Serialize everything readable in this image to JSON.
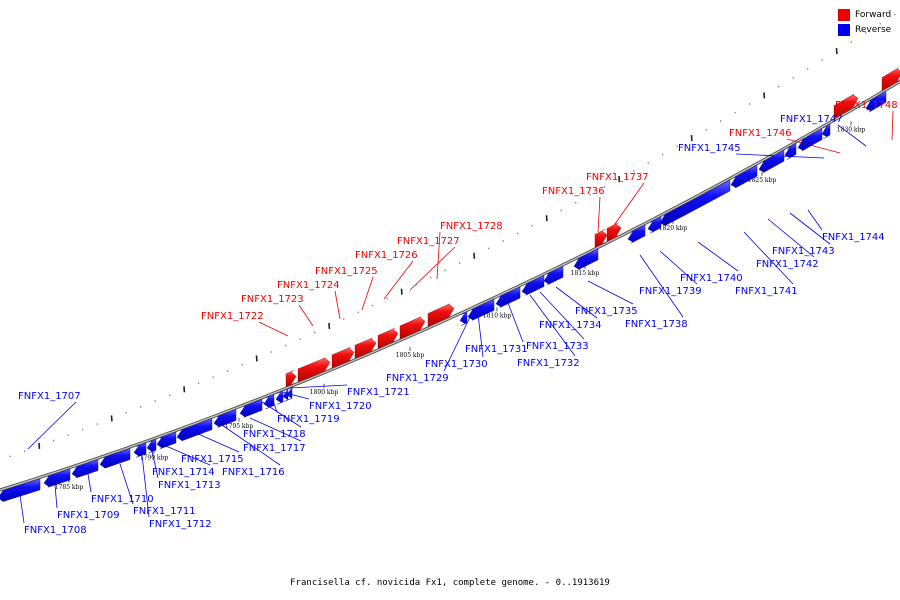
{
  "legend": {
    "forward_label": "Forward",
    "reverse_label": "Reverse",
    "forward_color": "#ee0000",
    "reverse_color": "#0000ee"
  },
  "caption": "Francisella cf. novicida Fx1, complete genome. - 0..1913619",
  "scale_unit": "kbp",
  "scale_labels": [
    "1785 kbp",
    "1790 kbp",
    "1795 kbp",
    "1800 kbp",
    "1805 kbp",
    "1810 kbp",
    "1815 kbp",
    "1820 kbp",
    "1825 kbp",
    "1830 kbp"
  ],
  "genes": [
    {
      "name": "FNFX1_1707",
      "strand": "reverse"
    },
    {
      "name": "FNFX1_1708",
      "strand": "reverse"
    },
    {
      "name": "FNFX1_1709",
      "strand": "reverse"
    },
    {
      "name": "FNFX1_1710",
      "strand": "reverse"
    },
    {
      "name": "FNFX1_1711",
      "strand": "reverse"
    },
    {
      "name": "FNFX1_1712",
      "strand": "reverse"
    },
    {
      "name": "FNFX1_1713",
      "strand": "reverse"
    },
    {
      "name": "FNFX1_1714",
      "strand": "reverse"
    },
    {
      "name": "FNFX1_1715",
      "strand": "reverse"
    },
    {
      "name": "FNFX1_1716",
      "strand": "reverse"
    },
    {
      "name": "FNFX1_1717",
      "strand": "reverse"
    },
    {
      "name": "FNFX1_1718",
      "strand": "reverse"
    },
    {
      "name": "FNFX1_1719",
      "strand": "reverse"
    },
    {
      "name": "FNFX1_1720",
      "strand": "reverse"
    },
    {
      "name": "FNFX1_1721",
      "strand": "reverse"
    },
    {
      "name": "FNFX1_1722",
      "strand": "forward"
    },
    {
      "name": "FNFX1_1723",
      "strand": "forward"
    },
    {
      "name": "FNFX1_1724",
      "strand": "forward"
    },
    {
      "name": "FNFX1_1725",
      "strand": "forward"
    },
    {
      "name": "FNFX1_1726",
      "strand": "forward"
    },
    {
      "name": "FNFX1_1727",
      "strand": "forward"
    },
    {
      "name": "FNFX1_1728",
      "strand": "forward"
    },
    {
      "name": "FNFX1_1729",
      "strand": "reverse"
    },
    {
      "name": "FNFX1_1730",
      "strand": "reverse"
    },
    {
      "name": "FNFX1_1731",
      "strand": "reverse"
    },
    {
      "name": "FNFX1_1732",
      "strand": "reverse"
    },
    {
      "name": "FNFX1_1733",
      "strand": "reverse"
    },
    {
      "name": "FNFX1_1734",
      "strand": "reverse"
    },
    {
      "name": "FNFX1_1735",
      "strand": "reverse"
    },
    {
      "name": "FNFX1_1736",
      "strand": "forward"
    },
    {
      "name": "FNFX1_1737",
      "strand": "forward"
    },
    {
      "name": "FNFX1_1738",
      "strand": "reverse"
    },
    {
      "name": "FNFX1_1739",
      "strand": "reverse"
    },
    {
      "name": "FNFX1_1740",
      "strand": "reverse"
    },
    {
      "name": "FNFX1_1741",
      "strand": "reverse"
    },
    {
      "name": "FNFX1_1742",
      "strand": "reverse"
    },
    {
      "name": "FNFX1_1743",
      "strand": "reverse"
    },
    {
      "name": "FNFX1_1744",
      "strand": "reverse"
    },
    {
      "name": "FNFX1_1745",
      "strand": "reverse"
    },
    {
      "name": "FNFX1_1746",
      "strand": "forward"
    },
    {
      "name": "FNFX1_1747",
      "strand": "reverse"
    },
    {
      "name": "FNFX1_1748",
      "strand": "forward"
    }
  ]
}
